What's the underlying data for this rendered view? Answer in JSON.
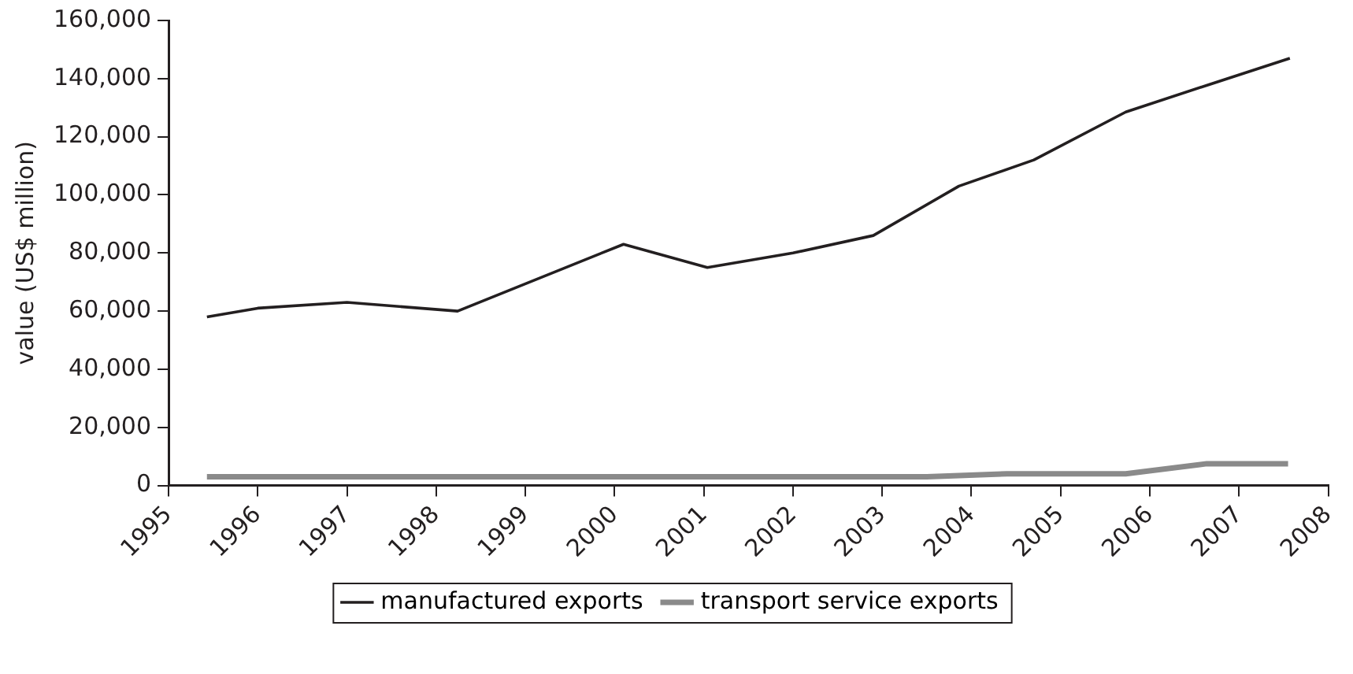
{
  "chart_data": {
    "type": "line",
    "ylabel": "value (US$ million)",
    "xlim": [
      1995,
      2008
    ],
    "xticks": [
      1995,
      1996,
      1997,
      1998,
      1999,
      2000,
      2001,
      2002,
      2003,
      2004,
      2005,
      2006,
      2007,
      2008
    ],
    "ylim": [
      0,
      160000
    ],
    "yticks": [
      0,
      {
        "value": 20000,
        "label": "20,000"
      },
      {
        "value": 40000,
        "label": "40,000"
      },
      {
        "value": 60000,
        "label": "60,000"
      },
      {
        "value": 80000,
        "label": "80,000"
      },
      {
        "value": 100000,
        "label": "100,000"
      },
      {
        "value": 120000,
        "label": "120,000"
      },
      {
        "value": 140000,
        "label": "140,000"
      },
      {
        "value": 160000,
        "label": "160,000"
      }
    ],
    "grid": false,
    "legend": "bottom",
    "marker": "none",
    "line_style": "solid",
    "series": [
      {
        "name": "manufactured exports",
        "color": "#231f20",
        "x": [
          1995.43,
          1996,
          1997,
          1998.24,
          2000.1,
          2001.04,
          2002,
          2002.9,
          2003.86,
          2004.7,
          2005.73,
          2006.67,
          2007.57
        ],
        "values": [
          58000,
          61000,
          63000,
          60000,
          83000,
          75000,
          80000,
          86000,
          103000,
          112000,
          128500,
          138000,
          147000
        ]
      },
      {
        "name": "transport service exports",
        "color": "#8a8a8a",
        "x": [
          1995.43,
          2003.5,
          2004.4,
          2005.73,
          2006.64,
          2007.55
        ],
        "values": [
          3000,
          3000,
          4000,
          4000,
          7500,
          7500
        ]
      }
    ]
  }
}
